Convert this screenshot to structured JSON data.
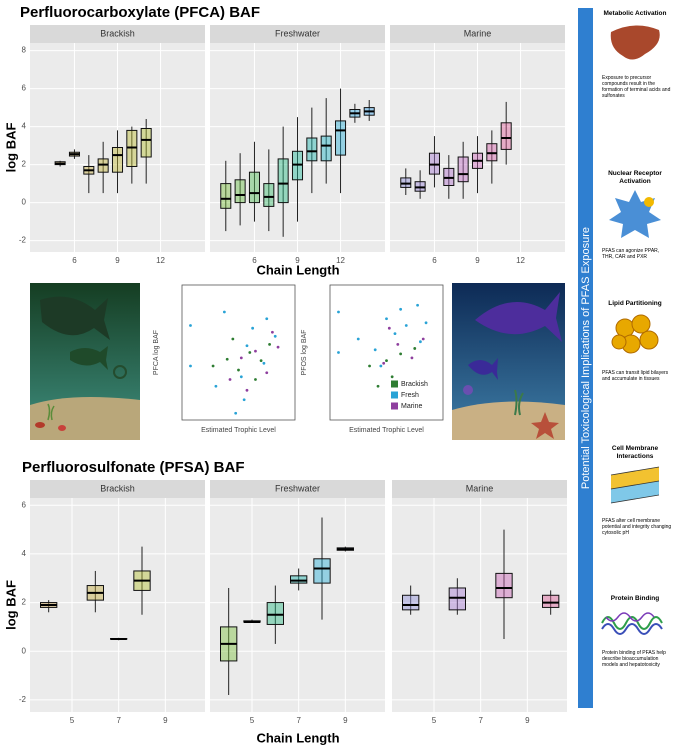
{
  "chart_data": [
    {
      "type": "box",
      "title": "Perfluorocarboxylate (PFCA) BAF",
      "xlabel": "Chain Length",
      "ylabel": "log BAF",
      "ylim": [
        -2.6,
        8.4
      ],
      "yticks": [
        -2,
        0,
        2,
        4,
        6,
        8
      ],
      "xlim": [
        2.9,
        15.1
      ],
      "xticks": [
        6,
        9,
        12
      ],
      "facets": [
        {
          "name": "Brackish",
          "boxes": [
            {
              "x": 5,
              "color": "#c9a24a",
              "stats": [
                1.9,
                2.0,
                2.05,
                2.15,
                2.2
              ]
            },
            {
              "x": 6,
              "color": "#c8a845",
              "stats": [
                2.3,
                2.45,
                2.55,
                2.65,
                2.8
              ]
            },
            {
              "x": 7,
              "color": "#c6ae40",
              "stats": [
                0.5,
                1.5,
                1.7,
                1.9,
                2.5
              ]
            },
            {
              "x": 8,
              "color": "#c4b43c",
              "stats": [
                0.5,
                1.6,
                2.0,
                2.3,
                3.2
              ]
            },
            {
              "x": 9,
              "color": "#c0b838",
              "stats": [
                0.5,
                1.6,
                2.5,
                2.9,
                3.8
              ]
            },
            {
              "x": 10,
              "color": "#bcbc36",
              "stats": [
                1.0,
                1.9,
                2.9,
                3.8,
                4.0
              ]
            },
            {
              "x": 11,
              "color": "#b6c036",
              "stats": [
                1.0,
                2.4,
                3.3,
                3.9,
                4.4
              ]
            }
          ]
        },
        {
          "name": "Freshwater",
          "boxes": [
            {
              "x": 4,
              "color": "#7fc241",
              "stats": [
                -1.5,
                -0.3,
                0.2,
                1.0,
                2.2
              ]
            },
            {
              "x": 5,
              "color": "#6cc04a",
              "stats": [
                -1.2,
                0,
                0.4,
                1.2,
                2.6
              ]
            },
            {
              "x": 6,
              "color": "#55be5a",
              "stats": [
                -1.0,
                0,
                0.5,
                1.6,
                3.2
              ]
            },
            {
              "x": 7,
              "color": "#3fbc6e",
              "stats": [
                -1.5,
                -0.2,
                0.3,
                1.0,
                2.8
              ]
            },
            {
              "x": 8,
              "color": "#2dba84",
              "stats": [
                -1.8,
                0,
                1.0,
                2.3,
                4.0
              ]
            },
            {
              "x": 9,
              "color": "#22b89a",
              "stats": [
                -1.0,
                1.2,
                2.0,
                2.7,
                4.5
              ]
            },
            {
              "x": 10,
              "color": "#1eb6b0",
              "stats": [
                0.5,
                2.2,
                2.7,
                3.4,
                5.0
              ]
            },
            {
              "x": 11,
              "color": "#22b4c6",
              "stats": [
                1.0,
                2.2,
                3.0,
                3.5,
                5.5
              ]
            },
            {
              "x": 12,
              "color": "#2ab0d8",
              "stats": [
                0.5,
                2.5,
                3.8,
                4.3,
                6.0
              ]
            },
            {
              "x": 13,
              "color": "#34aae2",
              "stats": [
                4.2,
                4.5,
                4.7,
                4.9,
                5.2
              ]
            },
            {
              "x": 14,
              "color": "#3ea4ea",
              "stats": [
                4.3,
                4.6,
                4.8,
                5.0,
                5.4
              ]
            }
          ]
        },
        {
          "name": "Marine",
          "boxes": [
            {
              "x": 4,
              "color": "#8f8fd8",
              "stats": [
                0.4,
                0.8,
                1.0,
                1.3,
                1.8
              ]
            },
            {
              "x": 5,
              "color": "#9a86d6",
              "stats": [
                0.2,
                0.6,
                0.8,
                1.1,
                1.7
              ]
            },
            {
              "x": 6,
              "color": "#a67dd2",
              "stats": [
                0.8,
                1.5,
                2.0,
                2.6,
                3.5
              ]
            },
            {
              "x": 7,
              "color": "#b274cc",
              "stats": [
                0.2,
                0.9,
                1.3,
                1.8,
                2.5
              ]
            },
            {
              "x": 8,
              "color": "#bf6cc4",
              "stats": [
                0.2,
                1.1,
                1.5,
                2.4,
                3.2
              ]
            },
            {
              "x": 9,
              "color": "#cc66b8",
              "stats": [
                0.5,
                1.8,
                2.2,
                2.6,
                3.5
              ]
            },
            {
              "x": 10,
              "color": "#d662aa",
              "stats": [
                1.0,
                2.2,
                2.6,
                3.1,
                3.8
              ]
            },
            {
              "x": 11,
              "color": "#de5f9a",
              "stats": [
                2.0,
                2.8,
                3.4,
                4.2,
                5.3
              ]
            }
          ]
        }
      ]
    },
    {
      "type": "box",
      "title": "Perfluorosulfonate (PFSA) BAF",
      "xlabel": "Chain Length",
      "ylabel": "log BAF",
      "ylim": [
        -2.5,
        6.3
      ],
      "yticks": [
        -2,
        0,
        2,
        4,
        6
      ],
      "xlim": [
        3.2,
        10.7
      ],
      "xticks": [
        5,
        7,
        9
      ],
      "facets": [
        {
          "name": "Brackish",
          "boxes": [
            {
              "x": 4,
              "color": "#c9a24a",
              "stats": [
                1.6,
                1.8,
                1.9,
                2.0,
                2.1
              ]
            },
            {
              "x": 6,
              "color": "#c6ae40",
              "stats": [
                1.6,
                2.1,
                2.4,
                2.7,
                3.3
              ]
            },
            {
              "x": 7,
              "color": "#c0b838",
              "stats": [
                0.45,
                0.5,
                0.5,
                0.52,
                0.55
              ]
            },
            {
              "x": 8,
              "color": "#b6c036",
              "stats": [
                1.5,
                2.5,
                2.9,
                3.3,
                4.3
              ]
            }
          ]
        },
        {
          "name": "Freshwater",
          "boxes": [
            {
              "x": 4,
              "color": "#7fc241",
              "stats": [
                -1.8,
                -0.4,
                0.3,
                1.0,
                2.6
              ]
            },
            {
              "x": 5,
              "color": "#55be5a",
              "stats": [
                1.2,
                1.2,
                1.2,
                1.25,
                1.3
              ]
            },
            {
              "x": 6,
              "color": "#2dba84",
              "stats": [
                0.3,
                1.1,
                1.5,
                2.0,
                2.7
              ]
            },
            {
              "x": 7,
              "color": "#1eb6b0",
              "stats": [
                2.5,
                2.8,
                2.9,
                3.1,
                3.4
              ]
            },
            {
              "x": 8,
              "color": "#2ab0d8",
              "stats": [
                1.3,
                2.8,
                3.4,
                3.8,
                5.5
              ]
            },
            {
              "x": 9,
              "color": "#3ea4ea",
              "stats": [
                4.1,
                4.15,
                4.2,
                4.25,
                4.3
              ]
            }
          ]
        },
        {
          "name": "Marine",
          "boxes": [
            {
              "x": 4,
              "color": "#8f8fd8",
              "stats": [
                1.5,
                1.7,
                1.9,
                2.3,
                2.7
              ]
            },
            {
              "x": 6,
              "color": "#a67dd2",
              "stats": [
                1.5,
                1.7,
                2.2,
                2.6,
                3.0
              ]
            },
            {
              "x": 8,
              "color": "#cc66b8",
              "stats": [
                0.5,
                2.2,
                2.6,
                3.2,
                5.0
              ]
            },
            {
              "x": 10,
              "color": "#de5f9a",
              "stats": [
                1.5,
                1.8,
                2.0,
                2.3,
                2.5
              ]
            }
          ]
        }
      ]
    },
    {
      "type": "scatter",
      "xlabel": "Estimated Trophic Level",
      "ylabel": "PFCA log BAF",
      "xlim": [
        1,
        5
      ],
      "ylim": [
        -2,
        8
      ],
      "series": [
        {
          "name": "Brackish",
          "color": "#2e7d32",
          "x": [
            2.1,
            2.6,
            3.0,
            3.4,
            3.8,
            4.1,
            2.8,
            3.6
          ],
          "y": [
            2.0,
            2.5,
            1.7,
            3.0,
            2.4,
            3.6,
            4.0,
            1.0
          ]
        },
        {
          "name": "Fresh",
          "color": "#29a3d6",
          "x": [
            1.3,
            1.3,
            2.2,
            2.9,
            3.1,
            3.3,
            3.5,
            3.9,
            4.3,
            2.5,
            3.2,
            4.0
          ],
          "y": [
            5.0,
            2.0,
            0.5,
            -1.5,
            1.2,
            3.5,
            4.8,
            2.2,
            4.2,
            6.0,
            -0.5,
            5.5
          ]
        },
        {
          "name": "Marine",
          "color": "#8e3f9e",
          "x": [
            2.7,
            3.1,
            3.6,
            4.0,
            4.4,
            3.3,
            4.2
          ],
          "y": [
            1.0,
            2.6,
            3.1,
            1.5,
            3.4,
            0.2,
            4.5
          ]
        }
      ]
    },
    {
      "type": "scatter",
      "xlabel": "Estimated Trophic Level",
      "ylabel": "PFOS log BAF",
      "xlim": [
        1,
        5
      ],
      "ylim": [
        -2,
        8
      ],
      "legend": "lower right",
      "series": [
        {
          "name": "Brackish",
          "color": "#2e7d32",
          "x": [
            2.4,
            3.0,
            3.5,
            4.0,
            3.2,
            2.7
          ],
          "y": [
            2.0,
            2.4,
            2.9,
            3.3,
            1.2,
            0.5
          ]
        },
        {
          "name": "Fresh",
          "color": "#29a3d6",
          "x": [
            1.3,
            1.3,
            2.0,
            2.6,
            3.0,
            3.3,
            3.7,
            4.1,
            4.4,
            2.8,
            3.5,
            4.2
          ],
          "y": [
            6.0,
            3.0,
            4.0,
            3.2,
            5.5,
            4.4,
            5.0,
            6.5,
            5.2,
            2.0,
            6.2,
            3.8
          ]
        },
        {
          "name": "Marine",
          "color": "#8e3f9e",
          "x": [
            2.9,
            3.4,
            3.9,
            4.3,
            3.1
          ],
          "y": [
            2.2,
            3.6,
            2.6,
            4.0,
            4.8
          ]
        }
      ]
    }
  ],
  "sidebar": {
    "banner": "Potential Toxicological Implications of PFAS Exposure",
    "panels": [
      {
        "heading": "Metabolic Activation",
        "text": "Exposure to precursor compounds result in the formation of terminal acids and sulfonates"
      },
      {
        "heading": "Nuclear Receptor Activation",
        "text": "PFAS can agonize PPAR, THR, CAR and PXR"
      },
      {
        "heading": "Lipid Partitioning",
        "text": "PFAS can transit lipid bilayers and accumulate in tissues"
      },
      {
        "heading": "Cell Membrane Interactions",
        "text": "PFAS alter cell membrane potential and integrity changing cytosolic pH"
      },
      {
        "heading": "Protein Binding",
        "text": "Protein binding of PFAS help describe bioaccumulation models and hepatotoxicity"
      }
    ]
  }
}
